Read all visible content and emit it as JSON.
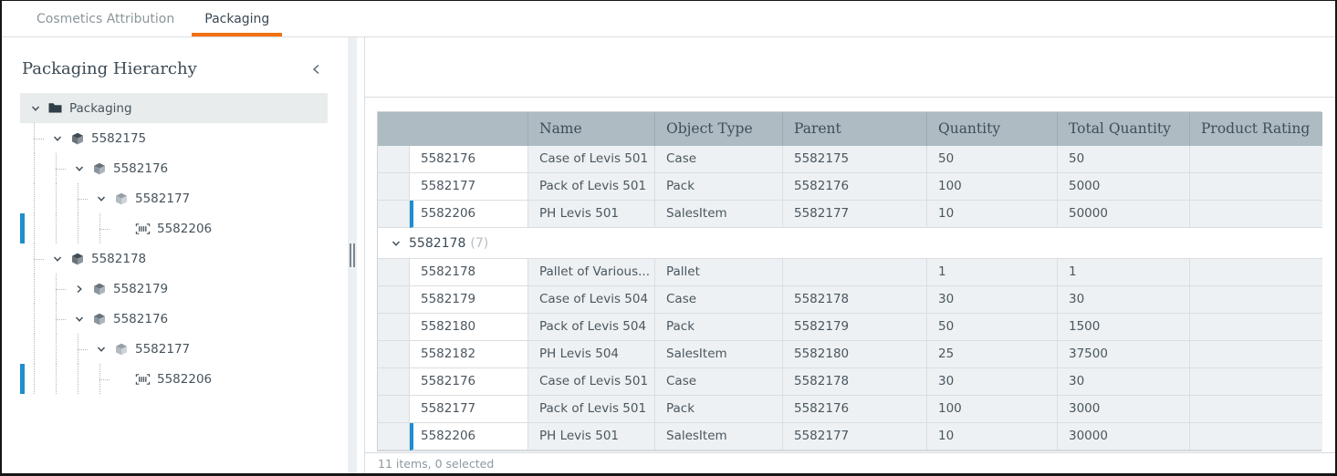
{
  "colors": {
    "accent_orange": "#f2700d",
    "accent_blue": "#1f8ece",
    "table_header_bg": "#aebbc3"
  },
  "tabs": [
    {
      "label": "Cosmetics Attribution",
      "active": false
    },
    {
      "label": "Packaging",
      "active": true
    }
  ],
  "sidebar": {
    "title": "Packaging Hierarchy",
    "collapse_icon": "chevron-left-icon",
    "tree": [
      {
        "label": "Packaging",
        "icon": "folder-icon",
        "level": 0,
        "expander": "expanded",
        "selected": true,
        "accent": false
      },
      {
        "label": "5582175",
        "icon": "cube-dark-icon",
        "level": 1,
        "expander": "expanded",
        "selected": false,
        "accent": false
      },
      {
        "label": "5582176",
        "icon": "cube-medium-icon",
        "level": 2,
        "expander": "expanded",
        "selected": false,
        "accent": false
      },
      {
        "label": "5582177",
        "icon": "cube-light-icon",
        "level": 3,
        "expander": "expanded",
        "selected": false,
        "accent": false
      },
      {
        "label": "5582206",
        "icon": "barcode-icon",
        "level": 4,
        "expander": "none",
        "selected": false,
        "accent": true
      },
      {
        "label": "5582178",
        "icon": "cube-dark-icon",
        "level": 1,
        "expander": "expanded",
        "selected": false,
        "accent": false
      },
      {
        "label": "5582179",
        "icon": "cube-medium-icon",
        "level": 2,
        "expander": "collapsed",
        "selected": false,
        "accent": false
      },
      {
        "label": "5582176",
        "icon": "cube-medium-icon",
        "level": 2,
        "expander": "expanded",
        "selected": false,
        "accent": false
      },
      {
        "label": "5582177",
        "icon": "cube-light-icon",
        "level": 3,
        "expander": "expanded",
        "selected": false,
        "accent": false
      },
      {
        "label": "5582206",
        "icon": "barcode-icon",
        "level": 4,
        "expander": "none",
        "selected": false,
        "accent": true
      }
    ]
  },
  "table": {
    "columns": [
      "",
      "Name",
      "Object Type",
      "Parent",
      "Quantity",
      "Total Quantity",
      "Product Rating"
    ],
    "rows": [
      {
        "type": "item",
        "id": "5582176",
        "name": "Case of Levis 501",
        "object_type": "Case",
        "parent": "5582175",
        "quantity": "50",
        "total_quantity": "50",
        "product_rating": "",
        "accent": false
      },
      {
        "type": "item",
        "id": "5582177",
        "name": "Pack of Levis 501",
        "object_type": "Pack",
        "parent": "5582176",
        "quantity": "100",
        "total_quantity": "5000",
        "product_rating": "",
        "accent": false
      },
      {
        "type": "item",
        "id": "5582206",
        "name": "PH Levis 501",
        "object_type": "SalesItem",
        "parent": "5582177",
        "quantity": "10",
        "total_quantity": "50000",
        "product_rating": "",
        "accent": true
      },
      {
        "type": "group",
        "id": "5582178",
        "count": "(7)",
        "expander": "expanded"
      },
      {
        "type": "item",
        "id": "5582178",
        "name": "Pallet of Various...",
        "object_type": "Pallet",
        "parent": "",
        "quantity": "1",
        "total_quantity": "1",
        "product_rating": "",
        "accent": false
      },
      {
        "type": "item",
        "id": "5582179",
        "name": "Case of Levis 504",
        "object_type": "Case",
        "parent": "5582178",
        "quantity": "30",
        "total_quantity": "30",
        "product_rating": "",
        "accent": false
      },
      {
        "type": "item",
        "id": "5582180",
        "name": "Pack of Levis 504",
        "object_type": "Pack",
        "parent": "5582179",
        "quantity": "50",
        "total_quantity": "1500",
        "product_rating": "",
        "accent": false
      },
      {
        "type": "item",
        "id": "5582182",
        "name": "PH Levis 504",
        "object_type": "SalesItem",
        "parent": "5582180",
        "quantity": "25",
        "total_quantity": "37500",
        "product_rating": "",
        "accent": false
      },
      {
        "type": "item",
        "id": "5582176",
        "name": "Case of Levis 501",
        "object_type": "Case",
        "parent": "5582178",
        "quantity": "30",
        "total_quantity": "30",
        "product_rating": "",
        "accent": false
      },
      {
        "type": "item",
        "id": "5582177",
        "name": "Pack of Levis 501",
        "object_type": "Pack",
        "parent": "5582176",
        "quantity": "100",
        "total_quantity": "3000",
        "product_rating": "",
        "accent": false
      },
      {
        "type": "item",
        "id": "5582206",
        "name": "PH Levis 501",
        "object_type": "SalesItem",
        "parent": "5582177",
        "quantity": "10",
        "total_quantity": "30000",
        "product_rating": "",
        "accent": true
      }
    ]
  },
  "status_bar": {
    "text": "11 items, 0 selected"
  }
}
